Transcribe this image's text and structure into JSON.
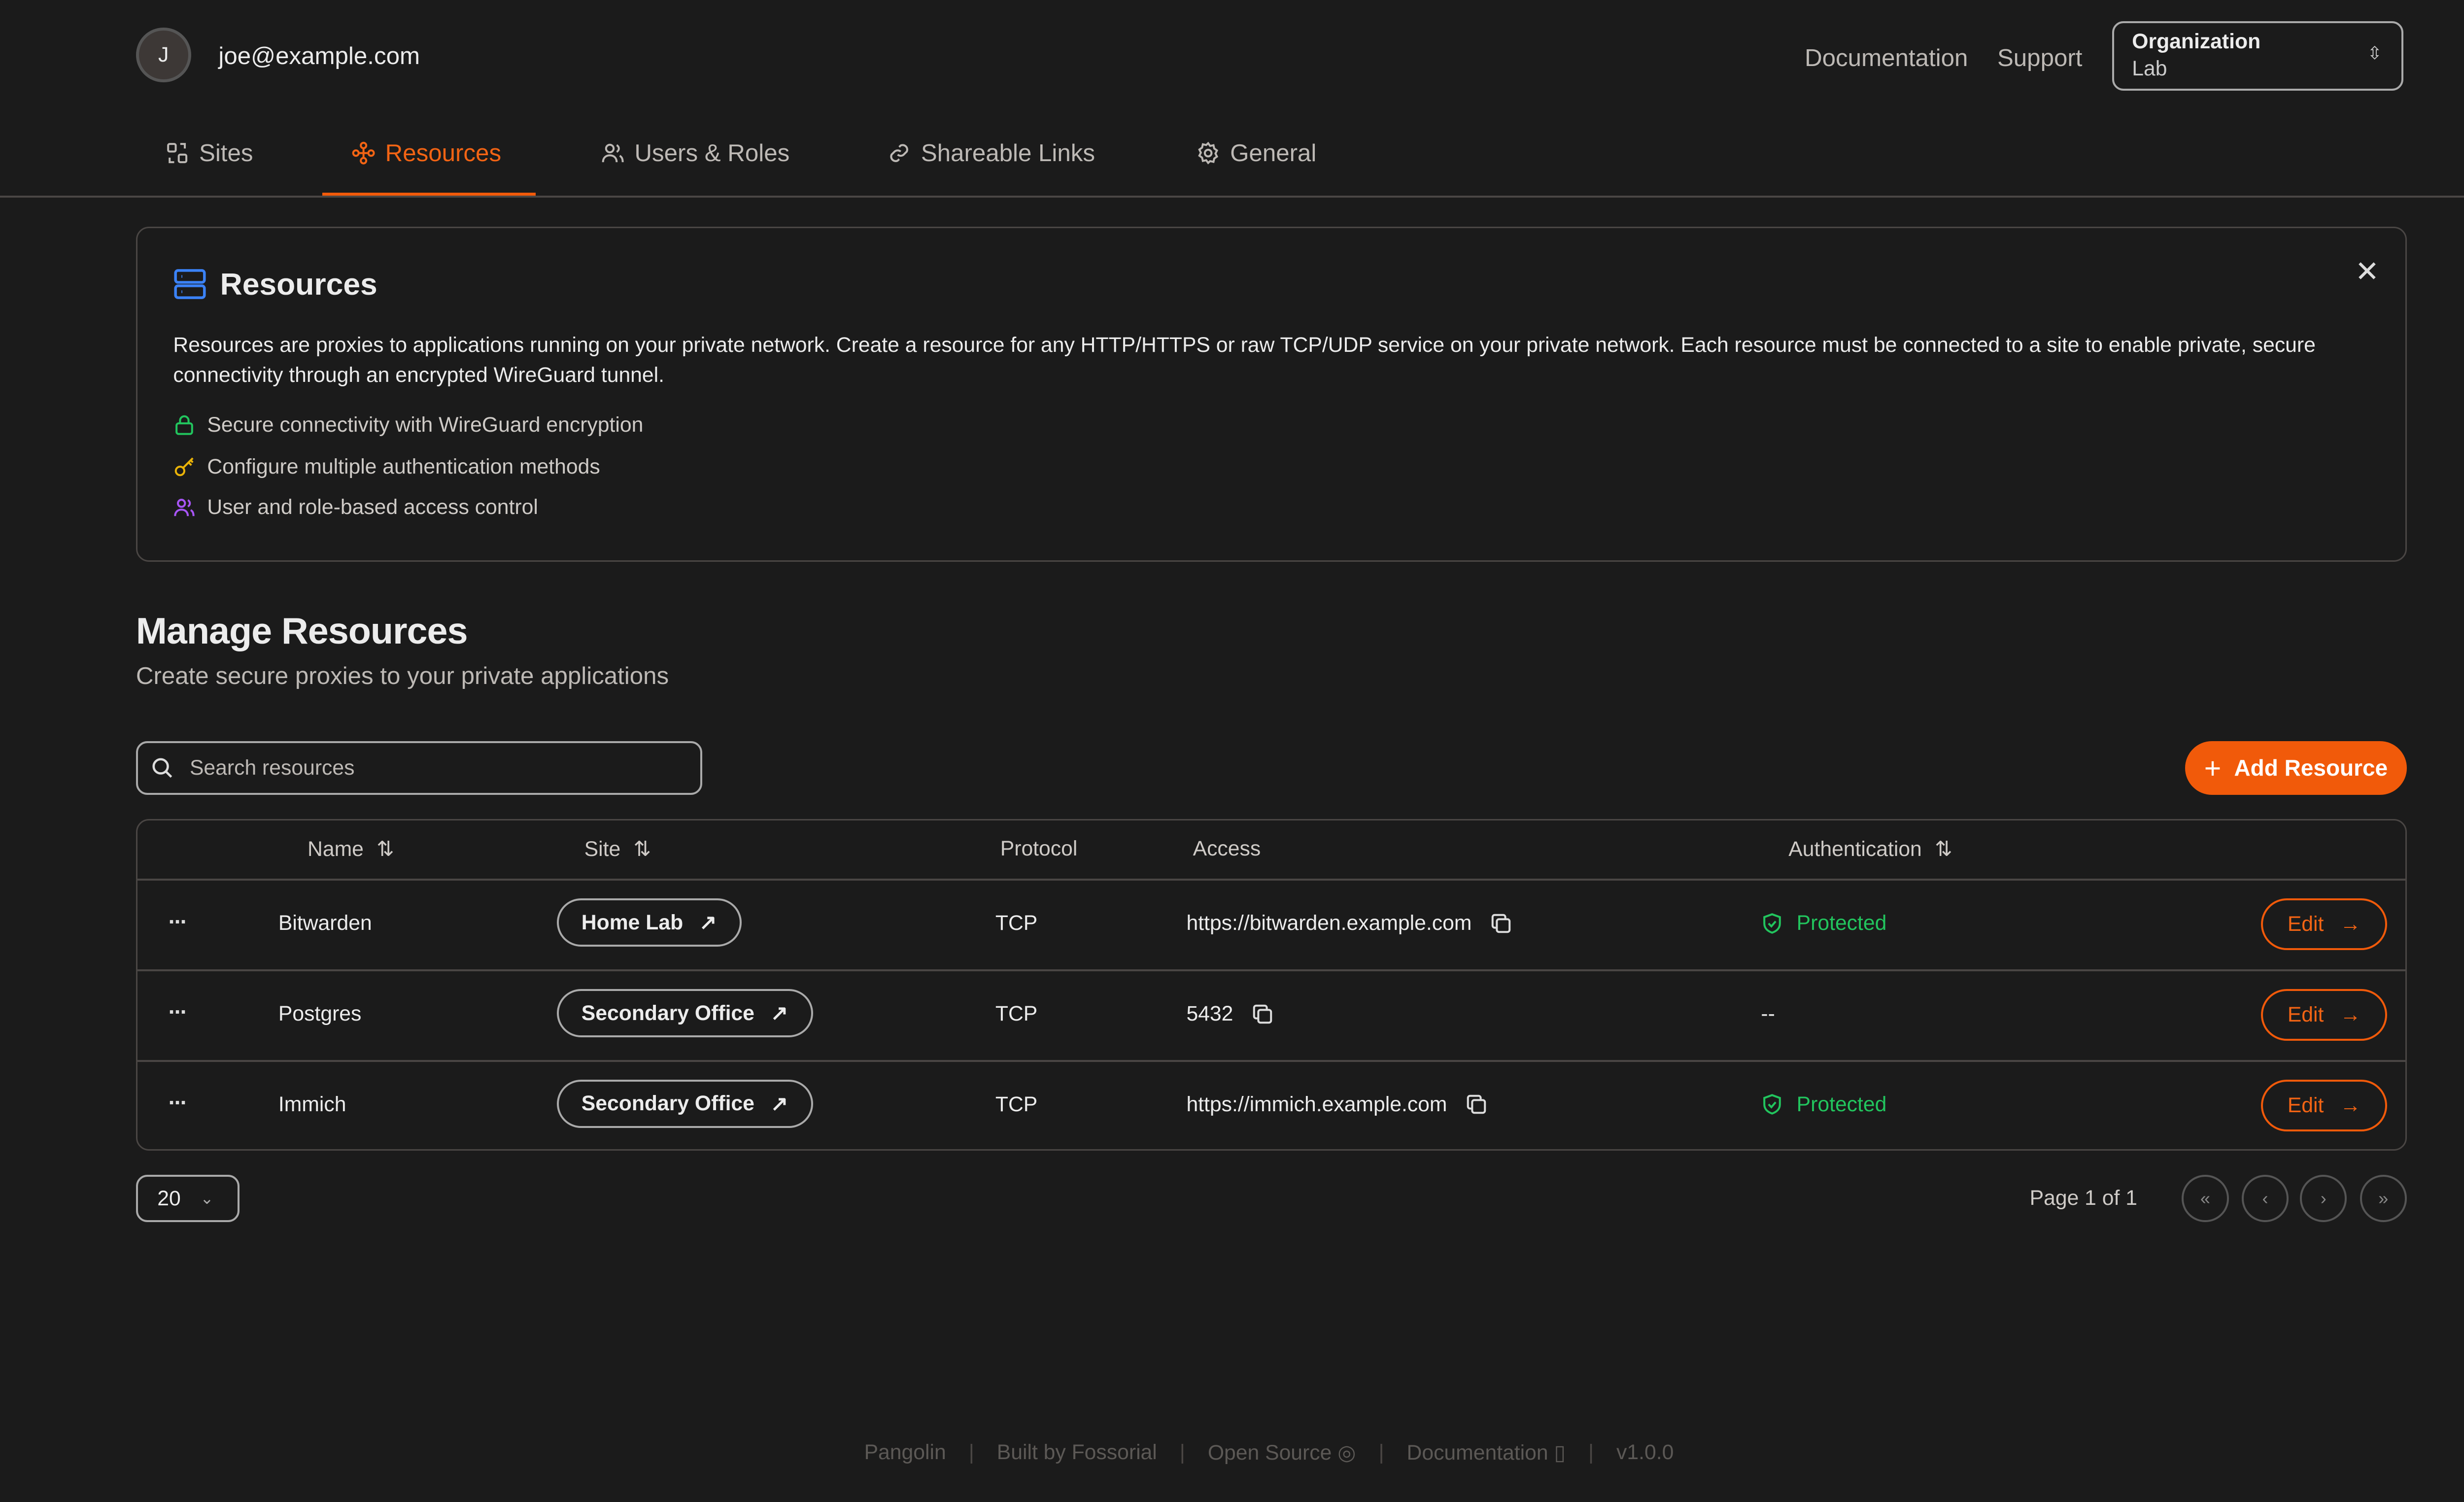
{
  "header": {
    "avatar_initial": "J",
    "email": "joe@example.com",
    "links": [
      "Documentation",
      "Support"
    ],
    "org": {
      "label": "Organization",
      "value": "Lab"
    }
  },
  "tabs": [
    {
      "label": "Sites",
      "icon": "sites-icon"
    },
    {
      "label": "Resources",
      "icon": "resources-icon",
      "active": true
    },
    {
      "label": "Users & Roles",
      "icon": "users-icon"
    },
    {
      "label": "Shareable Links",
      "icon": "link-icon"
    },
    {
      "label": "General",
      "icon": "gear-icon"
    }
  ],
  "info": {
    "title": "Resources",
    "description": "Resources are proxies to applications running on your private network. Create a resource for any HTTP/HTTPS or raw TCP/UDP service on your private network. Each resource must be connected to a site to enable private, secure connectivity through an encrypted WireGuard tunnel.",
    "features": [
      "Secure connectivity with WireGuard encryption",
      "Configure multiple authentication methods",
      "User and role-based access control"
    ]
  },
  "manage": {
    "title": "Manage Resources",
    "subtitle": "Create secure proxies to your private applications",
    "search_placeholder": "Search resources",
    "add_label": "Add Resource"
  },
  "table": {
    "columns": [
      "Name",
      "Site",
      "Protocol",
      "Access",
      "Authentication"
    ],
    "rows": [
      {
        "name": "Bitwarden",
        "site": "Home Lab",
        "protocol": "TCP",
        "access": "https://bitwarden.example.com",
        "auth": "Protected",
        "edit": "Edit"
      },
      {
        "name": "Postgres",
        "site": "Secondary Office",
        "protocol": "TCP",
        "access": "5432",
        "auth": "--",
        "edit": "Edit"
      },
      {
        "name": "Immich",
        "site": "Secondary Office",
        "protocol": "TCP",
        "access": "https://immich.example.com",
        "auth": "Protected",
        "edit": "Edit"
      }
    ]
  },
  "pagination": {
    "page_size": "20",
    "page_text": "Page 1 of 1"
  },
  "footer": [
    "Pangolin",
    "Built by Fossorial",
    "Open Source",
    "Documentation",
    "v1.0.0"
  ],
  "colors": {
    "accent": "#f15a0a",
    "background": "#1b1b1b",
    "success": "#22c55e",
    "info_icon": "#3b82f6"
  }
}
